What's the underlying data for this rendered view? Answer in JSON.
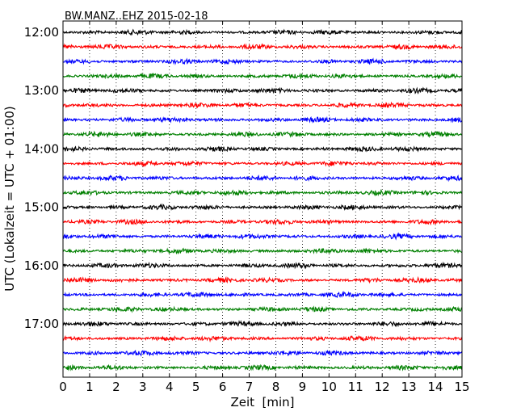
{
  "chart_data": {
    "type": "line",
    "title": "BW.MANZ..EHZ 2015-02-18",
    "xlabel": "Zeit  [min]",
    "ylabel": "UTC (Lokalzeit = UTC + 01:00)",
    "xlim": [
      0,
      15
    ],
    "x_ticks": [
      0,
      1,
      2,
      3,
      4,
      5,
      6,
      7,
      8,
      9,
      10,
      11,
      12,
      13,
      14,
      15
    ],
    "x_tick_labels": [
      "0",
      "1",
      "2",
      "3",
      "4",
      "5",
      "6",
      "7",
      "8",
      "9",
      "10",
      "11",
      "12",
      "13",
      "14",
      "15"
    ],
    "y_tick_labels": [
      "12:00",
      "13:00",
      "14:00",
      "15:00",
      "16:00",
      "17:00"
    ],
    "trace_interval_minutes": 15,
    "trace_start_times": [
      "12:00",
      "12:15",
      "12:30",
      "12:45",
      "13:00",
      "13:15",
      "13:30",
      "13:45",
      "14:00",
      "14:15",
      "14:30",
      "14:45",
      "15:00",
      "15:15",
      "15:30",
      "15:45",
      "16:00",
      "16:15",
      "16:30",
      "16:45",
      "17:00",
      "17:15",
      "17:30",
      "17:45"
    ],
    "trace_colors": [
      "#000000",
      "#ff0000",
      "#0000ff",
      "#008000"
    ],
    "grid": {
      "x": "dotted",
      "y": "none"
    },
    "legend": "none"
  }
}
